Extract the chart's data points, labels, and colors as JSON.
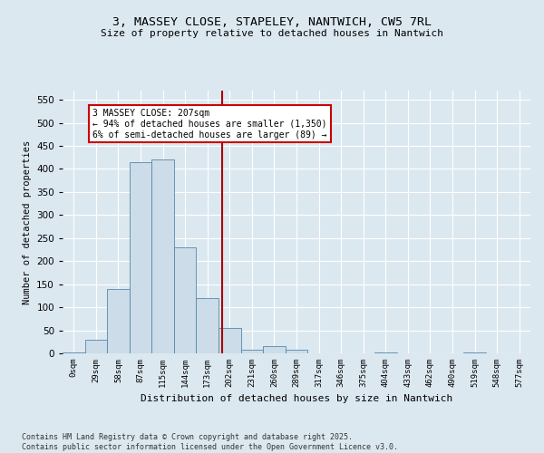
{
  "title": "3, MASSEY CLOSE, STAPELEY, NANTWICH, CW5 7RL",
  "subtitle": "Size of property relative to detached houses in Nantwich",
  "xlabel": "Distribution of detached houses by size in Nantwich",
  "ylabel": "Number of detached properties",
  "bin_labels": [
    "0sqm",
    "29sqm",
    "58sqm",
    "87sqm",
    "115sqm",
    "144sqm",
    "173sqm",
    "202sqm",
    "231sqm",
    "260sqm",
    "289sqm",
    "317sqm",
    "346sqm",
    "375sqm",
    "404sqm",
    "433sqm",
    "462sqm",
    "490sqm",
    "519sqm",
    "548sqm",
    "577sqm"
  ],
  "bar_values": [
    2,
    30,
    140,
    415,
    420,
    230,
    120,
    55,
    8,
    15,
    8,
    0,
    0,
    0,
    1,
    0,
    0,
    0,
    1,
    0,
    0
  ],
  "bar_color": "#ccdce8",
  "bar_edge_color": "#5588aa",
  "vline_pos": 7.17,
  "annotation_text": "3 MASSEY CLOSE: 207sqm\n← 94% of detached houses are smaller (1,350)\n6% of semi-detached houses are larger (89) →",
  "annotation_box_color": "#ffffff",
  "annotation_box_edge_color": "#cc0000",
  "vline_color": "#aa0000",
  "ylim": [
    0,
    570
  ],
  "yticks": [
    0,
    50,
    100,
    150,
    200,
    250,
    300,
    350,
    400,
    450,
    500,
    550
  ],
  "footer_line1": "Contains HM Land Registry data © Crown copyright and database right 2025.",
  "footer_line2": "Contains public sector information licensed under the Open Government Licence v3.0.",
  "bg_color": "#dce8f0",
  "plot_bg_color": "#dce8f0"
}
